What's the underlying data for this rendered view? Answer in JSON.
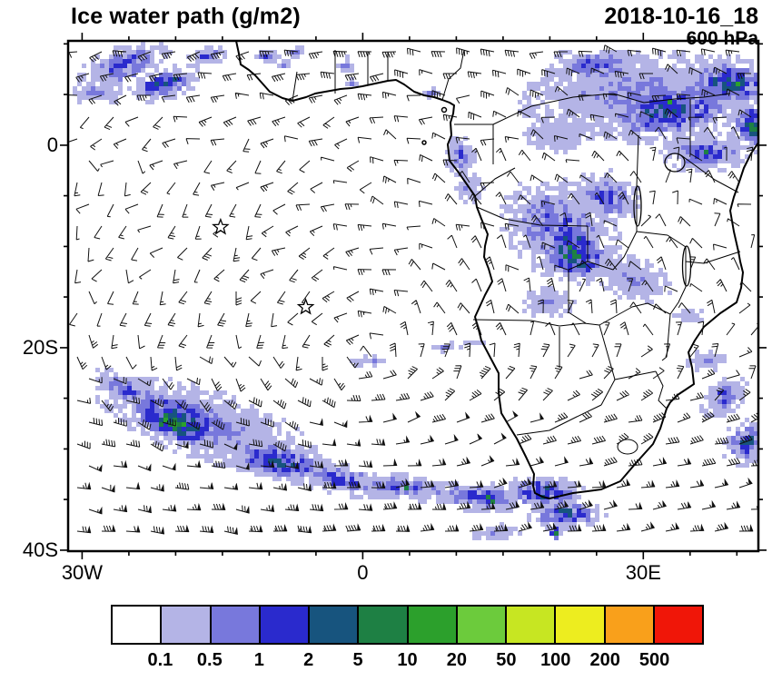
{
  "header": {
    "title": "Ice water path (g/m2)",
    "datetime": "2018-10-16_18",
    "level": "600 hPa"
  },
  "axes": {
    "lon_min": -31.5,
    "lon_max": 42.3,
    "lat_min": -40.1,
    "lat_max": 10.3,
    "minor_tick_deg": 5,
    "x_ticks": [
      {
        "label": "30W",
        "lon": -30
      },
      {
        "label": "0",
        "lon": 0
      },
      {
        "label": "30E",
        "lon": 30
      }
    ],
    "y_ticks": [
      {
        "label": "0",
        "lat": 0
      },
      {
        "label": "20S",
        "lat": -20
      },
      {
        "label": "40S",
        "lat": -40
      }
    ]
  },
  "colorbar": {
    "levels": [
      "0.1",
      "0.5",
      "1",
      "2",
      "5",
      "10",
      "20",
      "50",
      "100",
      "200",
      "500"
    ],
    "colors": [
      "#FFFFFF",
      "#B4B4E6",
      "#7878DC",
      "#2A2ACD",
      "#17547E",
      "#1E8044",
      "#2CA02C",
      "#6CCB3C",
      "#C7E622",
      "#EDED1F",
      "#F9A01B",
      "#F01608"
    ]
  },
  "chart_data": {
    "type": "heatmap",
    "title": "Ice water path (g/m2)",
    "units": "g/m2",
    "datetime": "2018-10-16_18",
    "pressure_level": "600 hPa",
    "projection": "regular lat-lon, South Atlantic and southern Africa",
    "lon_range": [
      -31.5,
      42.3
    ],
    "lat_range": [
      -40.1,
      10.3
    ],
    "levels": [
      0.1,
      0.5,
      1,
      2,
      5,
      10,
      20,
      50,
      100,
      200,
      500
    ],
    "legend_position": "bottom",
    "grid": "off",
    "wind_overlay": "600 hPa wind barbs over whole domain; anticyclonic circulation over the subtropical South Atlantic centered near 0E 22S, light easterlies north of the equator, strong westerlies with pennant barbs south of 30S",
    "markers": [
      {
        "shape": "star",
        "lon": -15.2,
        "lat": -8.1
      },
      {
        "shape": "star",
        "lon": -6.1,
        "lat": -16.0
      }
    ],
    "ice_regions": [
      [
        -25.7,
        8.1,
        5.3,
        2.0,
        -18,
        3
      ],
      [
        -21.3,
        6.3,
        4.4,
        1.6,
        -15,
        4
      ],
      [
        -28.6,
        5.4,
        2.9,
        1.3,
        0,
        2
      ],
      [
        -16.9,
        9.0,
        2.4,
        0.9,
        -10,
        3
      ],
      [
        -10.6,
        9.0,
        1.7,
        0.7,
        0,
        3
      ],
      [
        -8.7,
        8.1,
        1.2,
        0.7,
        0,
        2
      ],
      [
        -7.2,
        9.4,
        1.4,
        0.5,
        0,
        3
      ],
      [
        -1.9,
        8.1,
        1.0,
        0.9,
        0,
        3
      ],
      [
        -1.4,
        6.3,
        0.8,
        0.5,
        0,
        2
      ],
      [
        6.9,
        5.4,
        1.0,
        0.5,
        0,
        3
      ],
      [
        28.7,
        5.4,
        12.6,
        4.0,
        -5,
        2
      ],
      [
        32.6,
        3.6,
        8.7,
        3.1,
        -10,
        4
      ],
      [
        38.9,
        6.3,
        5.8,
        2.7,
        0,
        4
      ],
      [
        24.8,
        8.1,
        5.8,
        1.8,
        0,
        3
      ],
      [
        36.5,
        -0.5,
        4.9,
        2.2,
        0,
        3
      ],
      [
        42.3,
        2.2,
        3.9,
        2.7,
        0,
        5
      ],
      [
        20.9,
        1.3,
        3.9,
        1.8,
        0,
        1
      ],
      [
        10.2,
        -0.9,
        1.7,
        2.2,
        0,
        3
      ],
      [
        11.2,
        -4.0,
        1.5,
        1.6,
        0,
        2
      ],
      [
        20.9,
        -8.1,
        6.8,
        4.9,
        30,
        3
      ],
      [
        22.4,
        -10.3,
        4.4,
        3.1,
        30,
        5
      ],
      [
        25.8,
        -4.9,
        3.9,
        2.7,
        15,
        3
      ],
      [
        28.7,
        -13.0,
        4.4,
        2.2,
        20,
        2
      ],
      [
        19.5,
        -15.3,
        2.9,
        1.6,
        0,
        2
      ],
      [
        0.5,
        -21.1,
        2.4,
        0.55,
        -10,
        2
      ],
      [
        8.8,
        -19.7,
        1.7,
        0.45,
        -8,
        2
      ],
      [
        11.7,
        -19.3,
        1.2,
        0.36,
        0,
        1
      ],
      [
        -16.9,
        -27.4,
        12.6,
        3.6,
        18,
        2
      ],
      [
        -19.8,
        -26.5,
        7.8,
        2.5,
        18,
        4
      ],
      [
        -20.3,
        -27.4,
        5.3,
        1.8,
        18,
        6
      ],
      [
        -9.2,
        -31.0,
        6.8,
        2.0,
        12,
        4
      ],
      [
        -2.4,
        -32.8,
        6.8,
        1.6,
        10,
        3
      ],
      [
        4.4,
        -33.6,
        5.8,
        1.3,
        8,
        3
      ],
      [
        12.2,
        -34.5,
        5.8,
        1.6,
        5,
        3
      ],
      [
        19.0,
        -34.1,
        4.9,
        1.8,
        0,
        4
      ],
      [
        21.4,
        -36.3,
        4.4,
        1.6,
        0,
        4
      ],
      [
        -25.7,
        -23.8,
        3.9,
        1.3,
        25,
        3
      ],
      [
        36.5,
        -21.1,
        2.4,
        1.1,
        0,
        2
      ],
      [
        38.4,
        -24.7,
        2.9,
        1.8,
        -40,
        3
      ],
      [
        40.8,
        -29.2,
        2.9,
        2.2,
        -30,
        4
      ],
      [
        34.5,
        -16.6,
        1.9,
        0.9,
        0,
        1
      ],
      [
        14.1,
        -38.1,
        2.9,
        0.9,
        0,
        2
      ],
      [
        20.4,
        -38.1,
        0.8,
        0.7,
        0,
        7
      ]
    ],
    "features": [
      "Scattered ice patches in NW corner (25W-15W, 5N-10N), 0.1-5 g/m2",
      "Large ice cluster over NE part of domain east of 20E between 5S and 10N with embedded 5-50 g/m2 cores",
      "Ice over Congo basin / Angola around 18-30E, 5-16S",
      "Long SW-NE storm-track band across the South Atlantic from 27W,24S to 22E,37S with green cores of 5-50 g/m2",
      "Patches along the South Africa south coast and Agulhas region",
      "Patches near the Mozambique coast and SE edge 34-42E, 16-30S",
      "Clear subtropical high region in mid-Atlantic (white, < 0.1 g/m2)"
    ]
  }
}
